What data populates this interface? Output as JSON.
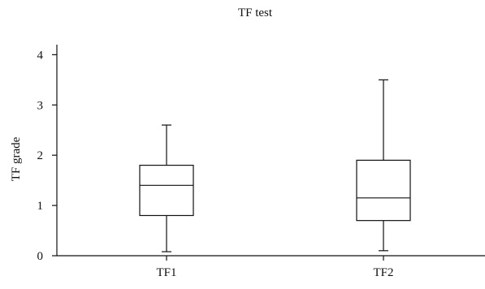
{
  "chart_data": {
    "type": "box",
    "title": "TF test",
    "xlabel": "",
    "ylabel": "TF grade",
    "ylim": [
      0,
      4.2
    ],
    "yticks": [
      0,
      1,
      2,
      3,
      4
    ],
    "categories": [
      "TF1",
      "TF2"
    ],
    "boxes": [
      {
        "label": "TF1",
        "min": 0.08,
        "q1": 0.8,
        "median": 1.4,
        "q3": 1.8,
        "max": 2.6
      },
      {
        "label": "TF2",
        "min": 0.1,
        "q1": 0.7,
        "median": 1.15,
        "q3": 1.9,
        "max": 3.5
      }
    ],
    "grid": false
  }
}
